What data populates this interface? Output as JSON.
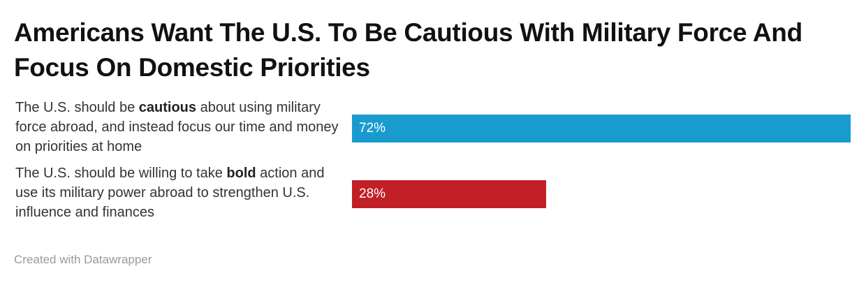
{
  "chart_data": {
    "type": "bar",
    "orientation": "horizontal",
    "title": "Americans Want The U.S. To Be Cautious With Military Force And Focus On Domestic Priorities",
    "categories": [
      "The U.S. should be cautious about using military force abroad, and instead focus our time and money on priorities at home",
      "The U.S. should be willing to take bold action and use its military power abroad to strengthen U.S. influence and finances"
    ],
    "category_segments": [
      [
        {
          "t": "The U.S. should be ",
          "b": false
        },
        {
          "t": "cautious",
          "b": true
        },
        {
          "t": " about using military force abroad, and instead focus our time and money on priorities at home",
          "b": false
        }
      ],
      [
        {
          "t": "The U.S. should be willing to take ",
          "b": false
        },
        {
          "t": "bold",
          "b": true
        },
        {
          "t": " action and use its military power abroad to strengthen U.S. influence and finances",
          "b": false
        }
      ]
    ],
    "values": [
      72,
      28
    ],
    "value_labels": [
      "72%",
      "28%"
    ],
    "colors": [
      "#1a9bd0",
      "#c02026"
    ],
    "xlim": [
      0,
      72
    ],
    "xlabel": "",
    "ylabel": "",
    "grid": false
  },
  "footer": "Created with Datawrapper"
}
